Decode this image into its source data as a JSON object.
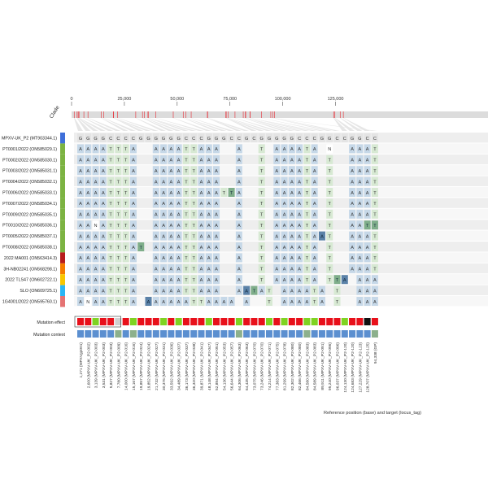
{
  "chart_data": {
    "type": "heatmap",
    "title": "",
    "xlabel": "Reference position (base) and target (locus_tag)",
    "ylabel": "",
    "clade_label": "Clade",
    "axis": {
      "xlim": [
        0,
        197209
      ],
      "ticks": [
        {
          "value": 0,
          "label": "0"
        },
        {
          "value": 25000,
          "label": "25,000"
        },
        {
          "value": 50000,
          "label": "50,000"
        },
        {
          "value": 75000,
          "label": "75,000"
        },
        {
          "value": 100000,
          "label": "100,000"
        },
        {
          "value": 125000,
          "label": "125,000"
        }
      ]
    },
    "rows": [
      {
        "label": "MPXV-UK_P2 (MT903344.1)",
        "clade_color": "#3f6fd9",
        "reference": true
      },
      {
        "label": "PT0001/2022 (ON585029.1)",
        "clade_color": "#7cb342"
      },
      {
        "label": "PT0002/2022 (ON585030.1)",
        "clade_color": "#7cb342"
      },
      {
        "label": "PT0003/2022 (ON585031.1)",
        "clade_color": "#7cb342"
      },
      {
        "label": "PT0004/2022 (ON585032.1)",
        "clade_color": "#7cb342"
      },
      {
        "label": "PT0006/2022 (ON585033.1)",
        "clade_color": "#7cb342"
      },
      {
        "label": "PT0007/2022 (ON585034.1)",
        "clade_color": "#7cb342"
      },
      {
        "label": "PT0009/2022 (ON585035.1)",
        "clade_color": "#7cb342"
      },
      {
        "label": "PT0010/2022 (ON585036.1)",
        "clade_color": "#7cb342"
      },
      {
        "label": "PT0005/2022 (ON585037.1)",
        "clade_color": "#7cb342"
      },
      {
        "label": "PT0008/2022 (ON585038.1)",
        "clade_color": "#7cb342"
      },
      {
        "label": "2022 MA001 (ON563414.3)",
        "clade_color": "#b71c1c"
      },
      {
        "label": "3H-NB02241 (ON568298.1)",
        "clade_color": "#f57c00"
      },
      {
        "label": "2022 TLS47 (ON602722.1)",
        "clade_color": "#f9c600"
      },
      {
        "label": "SLO (ON609725.1)",
        "clade_color": "#29b6f6"
      },
      {
        "label": "1G4001/2022 (ON595760.1)",
        "clade_color": "#e57373"
      }
    ],
    "columns": [
      {
        "position": "1,271",
        "target": "(MPXVgp001)",
        "ref": "G",
        "effect": "red",
        "context": "blue"
      },
      {
        "position": "2,600",
        "target": "(MPXV-UK_P2-002)",
        "ref": "G",
        "effect": "red",
        "context": "blue"
      },
      {
        "position": "3,139",
        "target": "(MPXV-UK_P2-003)",
        "ref": "G",
        "effect": "green",
        "context": "blue"
      },
      {
        "position": "3,531",
        "target": "(MPXV-UK_P2-003)",
        "ref": "G",
        "effect": "red",
        "context": "blue"
      },
      {
        "position": "5,827",
        "target": "(MPXV-UK_P2-003)",
        "ref": "C",
        "effect": "red",
        "context": "blue"
      },
      {
        "position": "7,780",
        "target": "(MPXV-UK_P2-009)",
        "ref": "C",
        "effect": "grey",
        "context": "grey"
      },
      {
        "position": "14,000",
        "target": "(MPXV-UK_P2-016)",
        "ref": "C",
        "effect": "red",
        "context": "blue"
      },
      {
        "position": "15,167",
        "target": "(MPXV-UK_P2-016)",
        "ref": "C",
        "effect": "green",
        "context": "grey"
      },
      {
        "position": "19,857",
        "target": "(MPXV-UK_P2-024)",
        "ref": "G",
        "effect": "red",
        "context": "blue"
      },
      {
        "position": "19,852",
        "target": "(MPXV-UK_P2-024)",
        "ref": "G",
        "effect": "red",
        "context": "blue"
      },
      {
        "position": "21,732",
        "target": "(MPXV-UK_P2-027)",
        "ref": "G",
        "effect": "red",
        "context": "blue"
      },
      {
        "position": "30,376",
        "target": "(MPXV-UK_P2-031)",
        "ref": "G",
        "effect": "green",
        "context": "blue"
      },
      {
        "position": "33,592",
        "target": "(MPXV-UK_P2-036)",
        "ref": "G",
        "effect": "red",
        "context": "blue"
      },
      {
        "position": "34,489",
        "target": "(MPXV-UK_P2-037)",
        "ref": "G",
        "effect": "green",
        "context": "blue"
      },
      {
        "position": "36,173",
        "target": "(MPXV-UK_P2-037)",
        "ref": "C",
        "effect": "red",
        "context": "blue"
      },
      {
        "position": "36,320",
        "target": "(MPXV-UK_P2-038)",
        "ref": "C",
        "effect": "red",
        "context": "blue"
      },
      {
        "position": "39,871",
        "target": "(MPXV-UK_P2-041)",
        "ref": "C",
        "effect": "red",
        "context": "blue"
      },
      {
        "position": "48,148",
        "target": "(MPXV-UK_P2-047)",
        "ref": "G",
        "effect": "green",
        "context": "blue"
      },
      {
        "position": "52,894",
        "target": "(MPXV-UK_P2-051)",
        "ref": "G",
        "effect": "red",
        "context": "blue"
      },
      {
        "position": "54,136",
        "target": "(MPXV-UK_P2-053)",
        "ref": "G",
        "effect": "red",
        "context": "blue"
      },
      {
        "position": "56,644",
        "target": "(MPXV-UK_P2-057)",
        "ref": "C",
        "effect": "red",
        "context": "blue"
      },
      {
        "position": "64,306",
        "target": "(MPXV-UK_P2-063)",
        "ref": "C",
        "effect": "green",
        "context": "grey"
      },
      {
        "position": "64,435",
        "target": "(MPXV-UK_P2-063)",
        "ref": "G",
        "effect": "red",
        "context": "blue"
      },
      {
        "position": "73,075",
        "target": "(MPXV-UK_P2-070)",
        "ref": "C",
        "effect": "red",
        "context": "blue"
      },
      {
        "position": "73,246",
        "target": "(MPXV-UK_P2-070)",
        "ref": "G",
        "effect": "red",
        "context": "blue"
      },
      {
        "position": "74,214",
        "target": "(MPXV-UK_P2-071)",
        "ref": "G",
        "effect": "green",
        "context": "blue"
      },
      {
        "position": "77,383",
        "target": "(MPXV-UK_P2-075)",
        "ref": "G",
        "effect": "red",
        "context": "blue"
      },
      {
        "position": "81,299",
        "target": "(MPXV-UK_P2-078)",
        "ref": "G",
        "effect": "green",
        "context": "blue"
      },
      {
        "position": "82,302",
        "target": "(MPXV-UK_P2-080)",
        "ref": "G",
        "effect": "red",
        "context": "blue"
      },
      {
        "position": "82,466",
        "target": "(MPXV-UK_P2-080)",
        "ref": "C",
        "effect": "red",
        "context": "blue"
      },
      {
        "position": "84,580",
        "target": "(MPXV-UK_P2-083)",
        "ref": "C",
        "effect": "green",
        "context": "grey"
      },
      {
        "position": "84,589",
        "target": "(MPXV-UK_P2-083)",
        "ref": "C",
        "effect": "green",
        "context": "blue"
      },
      {
        "position": "89,911",
        "target": "(MPXV-UK_P2-091)",
        "ref": "G",
        "effect": "red",
        "context": "blue"
      },
      {
        "position": "95,240",
        "target": "(MPXV-UK_P2-096)",
        "ref": "G",
        "effect": "red",
        "context": "blue"
      },
      {
        "position": "96,037",
        "target": "(MPXV-UK_P2-096)",
        "ref": "C",
        "effect": "red",
        "context": "blue"
      },
      {
        "position": "124,130",
        "target": "(MPXV-UK_P2-120)",
        "ref": "C",
        "effect": "green",
        "context": "blue"
      },
      {
        "position": "124,683",
        "target": "(MPXV-UK_P2-120)",
        "ref": "G",
        "effect": "red",
        "context": "blue"
      },
      {
        "position": "127,229",
        "target": "(MPXV-UK_P2-123)",
        "ref": "G",
        "effect": "red",
        "context": "blue"
      },
      {
        "position": "128,707",
        "target": "(MPXV-UK_P2-125)",
        "ref": "C",
        "effect": "black",
        "context": "blue"
      },
      {
        "position": "94,338",
        "target": "(GP)",
        "ref": "C",
        "effect": "red",
        "context": "grey"
      }
    ],
    "cells": [
      "",
      "AAAATTTA  AAAATTAAA  A  T AAAATA N  AAAT  T",
      "AAAATTTA  AAAATTAAA  A  T AAAATA T  AAAT  T",
      "AAAATTTA  AAAATTAAA  A  T AAAATA T  AAAT  T",
      "AAAATTTA  AAAATTAAA  A  T AAAATA T  AAAT  T",
      "AAAATTTA  AAAATTAAAT A  T AAAATA T  AAAT  T",
      "AAAATTTA  AAAATTAAA  A  T AAAATA T  AAAT  T",
      "AAAATTTA  AAAATTAAA  A  T AAAATA T  AAAT  T",
      "AANATTTA  AAAATTAAA  A  T AAAATA T  AANTTT",
      "AAAATTTA  AAAATTAAA  A  T AAAATAAT  AAAT  T",
      "AAAATTTAT AAAATTAAA  A  T AAAATA T  AAAT  T",
      "AAAATTTA  AAAATTAAA  A  T AAAATA T  AAAT  T",
      "AAAATTTA  AAAATTAAA  A  T AAAATA T  AAAT  T",
      "AAAATTTA  AAAATTAAA  A  T AAAATA TTA AAAT  T",
      "AAAATTTA  AAAATTAAA  AATAT AAAATA T  AAAT  T",
      "ANAATTTA  AAAAATTAAAA A  T AAAATA T  AAAT  T"
    ],
    "highlights": [
      {
        "row": 5,
        "col": 20,
        "base": "T"
      },
      {
        "row": 8,
        "col": 38,
        "base": "T"
      },
      {
        "row": 8,
        "col": 39,
        "base": "T"
      },
      {
        "row": 9,
        "col": 32,
        "base": "A"
      },
      {
        "row": 10,
        "col": 8,
        "base": "T"
      },
      {
        "row": 13,
        "col": 34,
        "base": "T"
      },
      {
        "row": 13,
        "col": 35,
        "base": "A"
      },
      {
        "row": 14,
        "col": 22,
        "base": "A"
      },
      {
        "row": 14,
        "col": 23,
        "base": "T"
      },
      {
        "row": 15,
        "col": 9,
        "base": "A"
      }
    ],
    "legend_rows": [
      {
        "label": "Mutation effect",
        "key": "effect"
      },
      {
        "label": "Mutation context",
        "key": "context"
      }
    ],
    "colors": {
      "A": "#c6d8e8",
      "T": "#d7e9d3",
      "A_highlight": "#5b82a8",
      "T_highlight": "#7fae8a",
      "ref_cell": "#e4e4e4",
      "row_band": "#eeeeee",
      "red": "#e8101a",
      "green": "#7ed321",
      "grey": "#cfcfcf",
      "black": "#111111",
      "blue": "#5b8fd0",
      "sage": "#8cb08c"
    }
  }
}
